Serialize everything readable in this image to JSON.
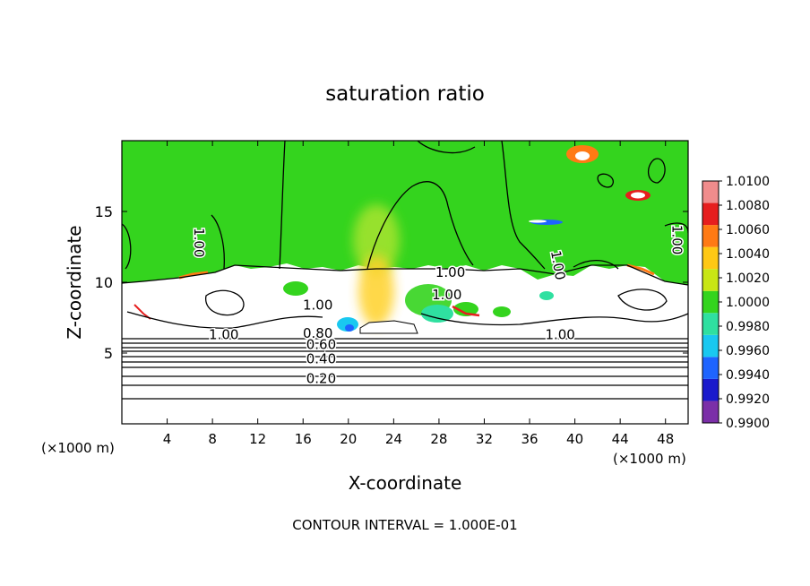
{
  "chart_data": {
    "type": "heatmap",
    "title": "saturation ratio",
    "xlabel": "X-coordinate",
    "ylabel": "Z-coordinate",
    "x_unit": "(×1000 m)",
    "z_unit": "(×1000 m)",
    "xlim": [
      0,
      50
    ],
    "ylim": [
      0,
      20
    ],
    "x_ticks": [
      4,
      8,
      12,
      16,
      20,
      24,
      28,
      32,
      36,
      40,
      44,
      48
    ],
    "y_ticks": [
      5,
      10,
      15
    ],
    "footer": "CONTOUR INTERVAL = 1.000E-01",
    "colorbar": {
      "levels": [
        0.99,
        0.992,
        0.994,
        0.996,
        0.998,
        1.0,
        1.002,
        1.004,
        1.006,
        1.008,
        1.01
      ],
      "labels": [
        "0.9900",
        "0.9920",
        "0.9940",
        "0.9960",
        "0.9980",
        "1.0000",
        "1.0020",
        "1.0040",
        "1.0060",
        "1.0080",
        "1.0100"
      ],
      "colors": [
        "#7b2fa8",
        "#1a1acc",
        "#1e64ff",
        "#19c8f0",
        "#2fe0a0",
        "#34d41e",
        "#c8e614",
        "#ffc814",
        "#ff7a14",
        "#e61e1e",
        "#f08c8c"
      ]
    },
    "contour_labels": [
      {
        "text": "1.00",
        "x": 6.8,
        "z": 12.8,
        "rotate": 90
      },
      {
        "text": "1.00",
        "x": 49.0,
        "z": 13.0,
        "rotate": 90
      },
      {
        "text": "1.00",
        "x": 38.5,
        "z": 11.2,
        "rotate": 80
      },
      {
        "text": "1.00",
        "x": 29.0,
        "z": 10.7,
        "rotate": 0
      },
      {
        "text": "1.00",
        "x": 28.7,
        "z": 9.1,
        "rotate": 0
      },
      {
        "text": "1.00",
        "x": 17.3,
        "z": 8.4,
        "rotate": 0
      },
      {
        "text": "1.00",
        "x": 9.0,
        "z": 6.3,
        "rotate": 0
      },
      {
        "text": "1.00",
        "x": 38.7,
        "z": 6.3,
        "rotate": 0
      },
      {
        "text": "0.80",
        "x": 17.3,
        "z": 6.4,
        "rotate": 0
      },
      {
        "text": "0.60",
        "x": 17.6,
        "z": 5.6,
        "rotate": 0
      },
      {
        "text": "0.40",
        "x": 17.6,
        "z": 4.6,
        "rotate": 0
      },
      {
        "text": "0.20",
        "x": 17.6,
        "z": 3.2,
        "rotate": 0
      }
    ]
  }
}
